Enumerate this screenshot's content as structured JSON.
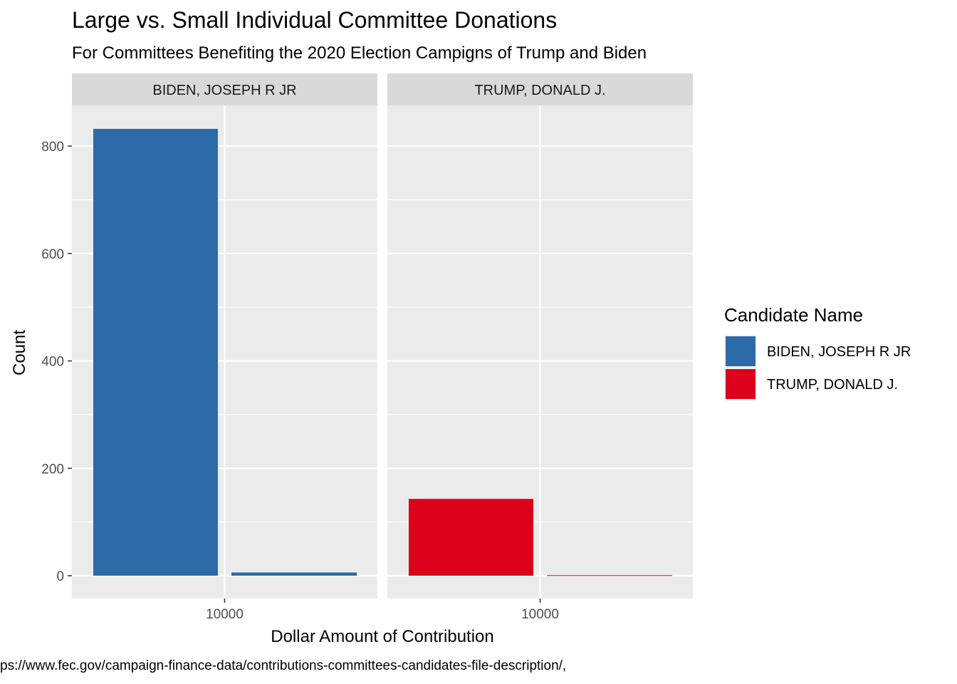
{
  "chart_data": {
    "type": "bar",
    "title": "Large vs. Small Individual Committee Donations",
    "subtitle": "For Committees Benefiting the 2020 Election Campigns of Trump and Biden",
    "xlabel": "Dollar Amount of Contribution",
    "ylabel": "Count",
    "caption": "ps://www.fec.gov/campaign-finance-data/contributions-committees-candidates-file-description/,",
    "legend": {
      "title": "Candidate Name",
      "position": "right"
    },
    "grid": true,
    "ylim": [
      -40,
      875
    ],
    "y_ticks": [
      0,
      200,
      400,
      600,
      800
    ],
    "x_tick_label": "10000",
    "facets": [
      {
        "label": "BIDEN, JOSEPH R JR",
        "color": "#2d6aa8",
        "bars": [
          {
            "group": "below 10000",
            "value": 832
          },
          {
            "group": "above 10000",
            "value": 6
          }
        ]
      },
      {
        "label": "TRUMP, DONALD J.",
        "color": "#dc001a",
        "bars": [
          {
            "group": "below 10000",
            "value": 143
          },
          {
            "group": "above 10000",
            "value": 1
          }
        ]
      }
    ]
  }
}
